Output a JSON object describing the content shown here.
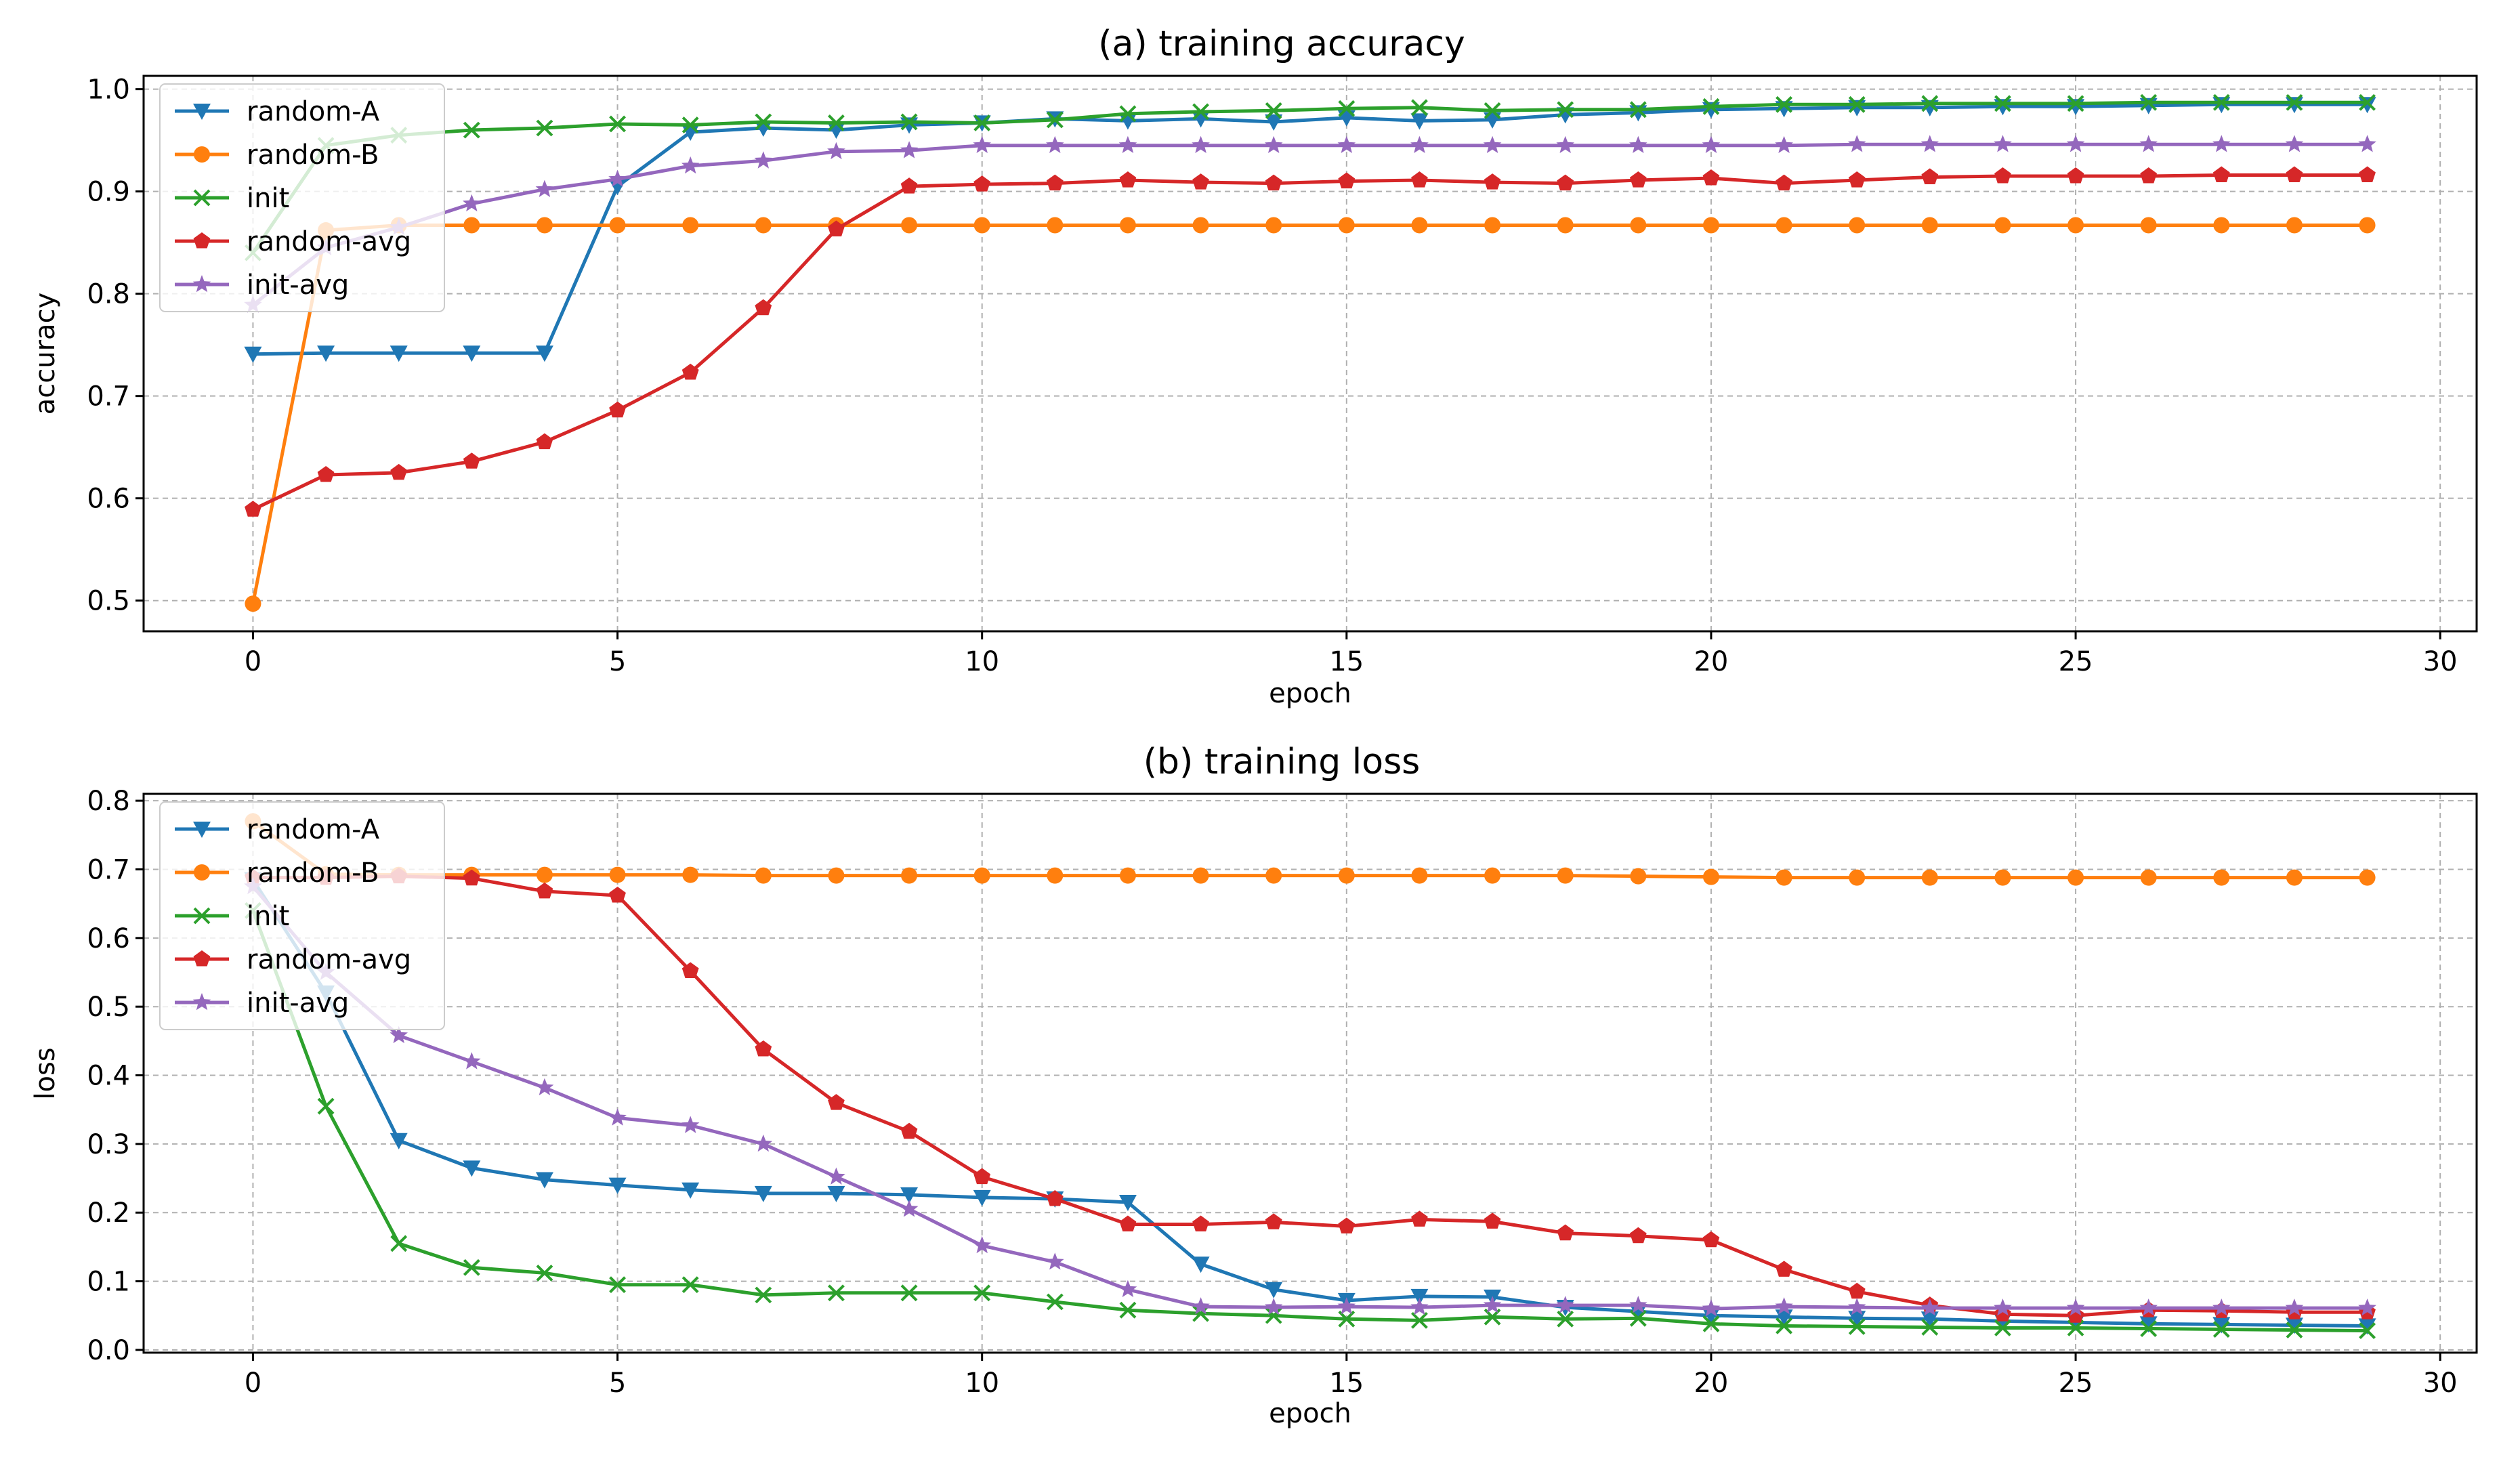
{
  "chart_data": [
    {
      "type": "line",
      "title": "(a)  training accuracy",
      "xlabel": "epoch",
      "ylabel": "accuracy",
      "xlim": [
        -1.5,
        30.5
      ],
      "ylim": [
        0.47,
        1.013
      ],
      "xticks": [
        0,
        5,
        10,
        15,
        20,
        25,
        30
      ],
      "yticks": [
        0.5,
        0.6,
        0.7,
        0.8,
        0.9,
        1.0
      ],
      "ytick_labels": [
        "0.5",
        "0.6",
        "0.7",
        "0.8",
        "0.9",
        "1.0"
      ],
      "grid": true,
      "legend_position": "upper-left",
      "x": [
        0,
        1,
        2,
        3,
        4,
        5,
        6,
        7,
        8,
        9,
        10,
        11,
        12,
        13,
        14,
        15,
        16,
        17,
        18,
        19,
        20,
        21,
        22,
        23,
        24,
        25,
        26,
        27,
        28,
        29
      ],
      "series": [
        {
          "name": "random-A",
          "color": "#1f77b4",
          "marker": "triangle-down",
          "values": [
            0.741,
            0.742,
            0.742,
            0.742,
            0.742,
            0.905,
            0.958,
            0.962,
            0.96,
            0.965,
            0.967,
            0.971,
            0.969,
            0.971,
            0.968,
            0.972,
            0.969,
            0.97,
            0.975,
            0.977,
            0.98,
            0.981,
            0.982,
            0.982,
            0.983,
            0.983,
            0.984,
            0.985,
            0.985,
            0.985
          ]
        },
        {
          "name": "random-B",
          "color": "#ff7f0e",
          "marker": "circle",
          "values": [
            0.497,
            0.862,
            0.867,
            0.867,
            0.867,
            0.867,
            0.867,
            0.867,
            0.867,
            0.867,
            0.867,
            0.867,
            0.867,
            0.867,
            0.867,
            0.867,
            0.867,
            0.867,
            0.867,
            0.867,
            0.867,
            0.867,
            0.867,
            0.867,
            0.867,
            0.867,
            0.867,
            0.867,
            0.867,
            0.867
          ]
        },
        {
          "name": "init",
          "color": "#2ca02c",
          "marker": "x",
          "values": [
            0.84,
            0.945,
            0.955,
            0.96,
            0.962,
            0.966,
            0.965,
            0.968,
            0.967,
            0.968,
            0.967,
            0.97,
            0.976,
            0.978,
            0.979,
            0.981,
            0.982,
            0.979,
            0.98,
            0.98,
            0.983,
            0.985,
            0.985,
            0.986,
            0.986,
            0.986,
            0.987,
            0.987,
            0.987,
            0.987
          ]
        },
        {
          "name": "random-avg",
          "color": "#d62728",
          "marker": "pentagon",
          "values": [
            0.589,
            0.623,
            0.625,
            0.636,
            0.655,
            0.686,
            0.723,
            0.786,
            0.863,
            0.905,
            0.907,
            0.908,
            0.911,
            0.909,
            0.908,
            0.91,
            0.911,
            0.909,
            0.908,
            0.911,
            0.913,
            0.908,
            0.911,
            0.914,
            0.915,
            0.915,
            0.915,
            0.916,
            0.916,
            0.916
          ]
        },
        {
          "name": "init-avg",
          "color": "#9467bd",
          "marker": "star",
          "values": [
            0.789,
            0.845,
            0.865,
            0.888,
            0.902,
            0.912,
            0.925,
            0.93,
            0.939,
            0.94,
            0.945,
            0.945,
            0.945,
            0.945,
            0.945,
            0.945,
            0.945,
            0.945,
            0.945,
            0.945,
            0.945,
            0.945,
            0.946,
            0.946,
            0.946,
            0.946,
            0.946,
            0.946,
            0.946,
            0.946
          ]
        }
      ]
    },
    {
      "type": "line",
      "title": "(b)  training loss",
      "xlabel": "epoch",
      "ylabel": "loss",
      "xlim": [
        -1.5,
        30.5
      ],
      "ylim": [
        -0.004,
        0.81
      ],
      "xticks": [
        0,
        5,
        10,
        15,
        20,
        25,
        30
      ],
      "yticks": [
        0.0,
        0.1,
        0.2,
        0.3,
        0.4,
        0.5,
        0.6,
        0.7,
        0.8
      ],
      "ytick_labels": [
        "0.0",
        "0.1",
        "0.2",
        "0.3",
        "0.4",
        "0.5",
        "0.6",
        "0.7",
        "0.8"
      ],
      "grid": true,
      "legend_position": "upper-left",
      "x": [
        0,
        1,
        2,
        3,
        4,
        5,
        6,
        7,
        8,
        9,
        10,
        11,
        12,
        13,
        14,
        15,
        16,
        17,
        18,
        19,
        20,
        21,
        22,
        23,
        24,
        25,
        26,
        27,
        28,
        29
      ],
      "series": [
        {
          "name": "random-A",
          "color": "#1f77b4",
          "marker": "triangle-down",
          "values": [
            0.685,
            0.52,
            0.305,
            0.265,
            0.248,
            0.24,
            0.233,
            0.228,
            0.228,
            0.226,
            0.222,
            0.22,
            0.215,
            0.125,
            0.088,
            0.072,
            0.078,
            0.077,
            0.062,
            0.056,
            0.05,
            0.048,
            0.046,
            0.045,
            0.042,
            0.04,
            0.038,
            0.037,
            0.036,
            0.035
          ]
        },
        {
          "name": "random-B",
          "color": "#ff7f0e",
          "marker": "circle",
          "values": [
            0.77,
            0.693,
            0.692,
            0.692,
            0.692,
            0.692,
            0.692,
            0.691,
            0.691,
            0.691,
            0.691,
            0.691,
            0.691,
            0.691,
            0.691,
            0.691,
            0.691,
            0.691,
            0.691,
            0.69,
            0.689,
            0.688,
            0.688,
            0.688,
            0.688,
            0.688,
            0.688,
            0.688,
            0.688,
            0.688
          ]
        },
        {
          "name": "init",
          "color": "#2ca02c",
          "marker": "x",
          "values": [
            0.64,
            0.355,
            0.155,
            0.12,
            0.112,
            0.095,
            0.095,
            0.08,
            0.083,
            0.083,
            0.083,
            0.07,
            0.058,
            0.053,
            0.05,
            0.045,
            0.043,
            0.048,
            0.045,
            0.046,
            0.038,
            0.035,
            0.034,
            0.033,
            0.032,
            0.032,
            0.031,
            0.03,
            0.029,
            0.028
          ]
        },
        {
          "name": "random-avg",
          "color": "#d62728",
          "marker": "pentagon",
          "values": [
            0.688,
            0.688,
            0.69,
            0.687,
            0.668,
            0.662,
            0.552,
            0.438,
            0.36,
            0.318,
            0.252,
            0.22,
            0.183,
            0.183,
            0.186,
            0.18,
            0.19,
            0.187,
            0.17,
            0.166,
            0.16,
            0.117,
            0.085,
            0.065,
            0.052,
            0.05,
            0.058,
            0.057,
            0.055,
            0.055
          ]
        },
        {
          "name": "init-avg",
          "color": "#9467bd",
          "marker": "star",
          "values": [
            0.675,
            0.55,
            0.458,
            0.42,
            0.382,
            0.338,
            0.327,
            0.3,
            0.252,
            0.205,
            0.152,
            0.128,
            0.088,
            0.063,
            0.062,
            0.063,
            0.062,
            0.065,
            0.065,
            0.065,
            0.06,
            0.063,
            0.062,
            0.061,
            0.061,
            0.061,
            0.061,
            0.061,
            0.061,
            0.061
          ]
        }
      ]
    }
  ]
}
